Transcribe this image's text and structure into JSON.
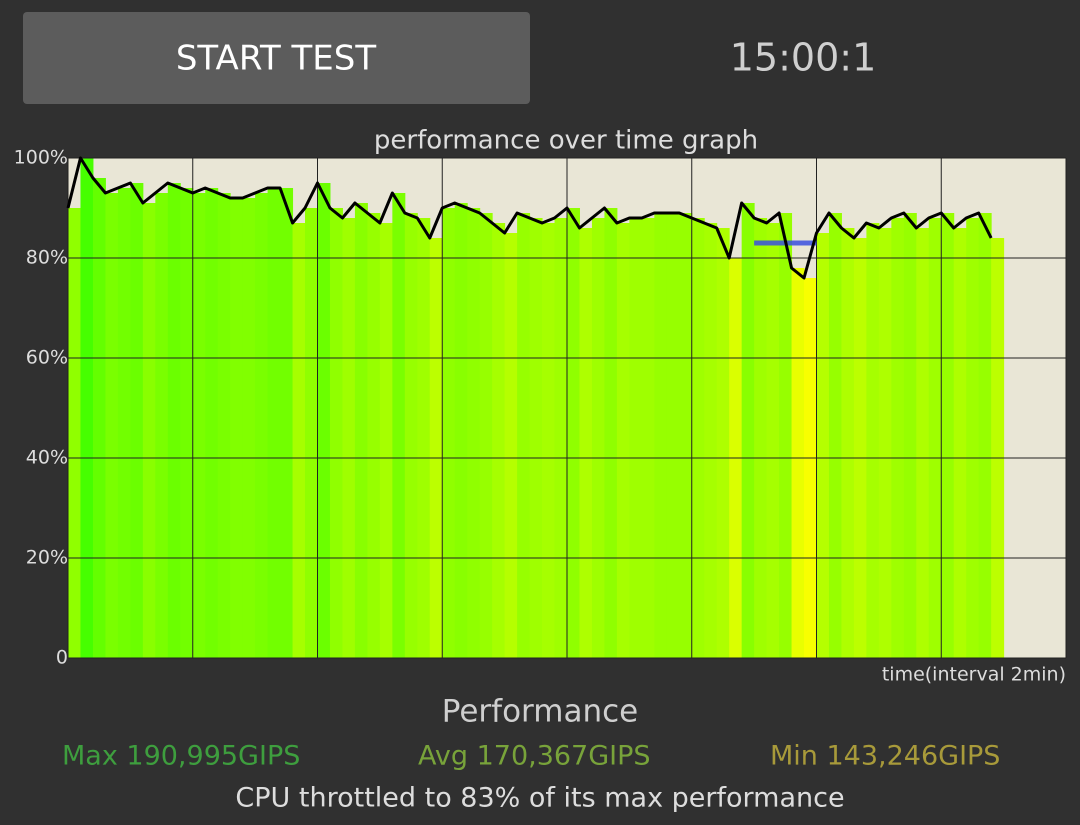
{
  "button": {
    "label": "START TEST"
  },
  "timer": "15:00:1",
  "chart_data": {
    "type": "line",
    "title": "performance over time graph",
    "x_label": "time(interval 2min)",
    "x": [
      0,
      0.2,
      0.4,
      0.6,
      0.8,
      1,
      1.2,
      1.4,
      1.6,
      1.8,
      2,
      2.2,
      2.4,
      2.6,
      2.8,
      3,
      3.2,
      3.4,
      3.6,
      3.8,
      4,
      4.2,
      4.4,
      4.6,
      4.8,
      5,
      5.2,
      5.4,
      5.6,
      5.8,
      6,
      6.2,
      6.4,
      6.6,
      6.8,
      7,
      7.2,
      7.4,
      7.6,
      7.8,
      8,
      8.2,
      8.4,
      8.6,
      8.8,
      9,
      9.2,
      9.4,
      9.6,
      9.8,
      10,
      10.2,
      10.4,
      10.6,
      10.8,
      11,
      11.2,
      11.4,
      11.6,
      11.8,
      12,
      12.2,
      12.4,
      12.6,
      12.8,
      13,
      13.2,
      13.4,
      13.6,
      13.8,
      14,
      14.2,
      14.4,
      14.6,
      14.8
    ],
    "values": [
      90,
      100,
      96,
      93,
      94,
      95,
      91,
      93,
      95,
      94,
      93,
      94,
      93,
      92,
      92,
      93,
      94,
      94,
      87,
      90,
      95,
      90,
      88,
      91,
      89,
      87,
      93,
      89,
      88,
      84,
      90,
      91,
      90,
      89,
      87,
      85,
      89,
      88,
      87,
      88,
      90,
      86,
      88,
      90,
      87,
      88,
      88,
      89,
      89,
      89,
      88,
      87,
      86,
      80,
      91,
      88,
      87,
      89,
      78,
      76,
      85,
      89,
      86,
      84,
      87,
      86,
      88,
      89,
      86,
      88,
      89,
      86,
      88,
      89,
      84
    ],
    "color": "#000000",
    "marker": {
      "value": 83,
      "x": [
        11,
        12
      ],
      "color": "#3a4fe0"
    },
    "xlim": [
      0,
      16
    ],
    "xticks": [
      0,
      2,
      4,
      6,
      8,
      10,
      12,
      14,
      16
    ],
    "ylim": [
      0,
      100
    ],
    "yticks": [
      0,
      {
        "value": 20,
        "label": "20%"
      },
      {
        "value": 40,
        "label": "40%"
      },
      {
        "value": 60,
        "label": "60%"
      },
      {
        "value": 80,
        "label": "80%"
      },
      {
        "value": 100,
        "label": "100%"
      }
    ],
    "grid": true
  },
  "stats": {
    "title": "Performance",
    "max": "Max 190,995GIPS",
    "avg": "Avg 170,367GIPS",
    "min": "Min 143,246GIPS",
    "summary": "CPU throttled to 83% of its max performance"
  }
}
